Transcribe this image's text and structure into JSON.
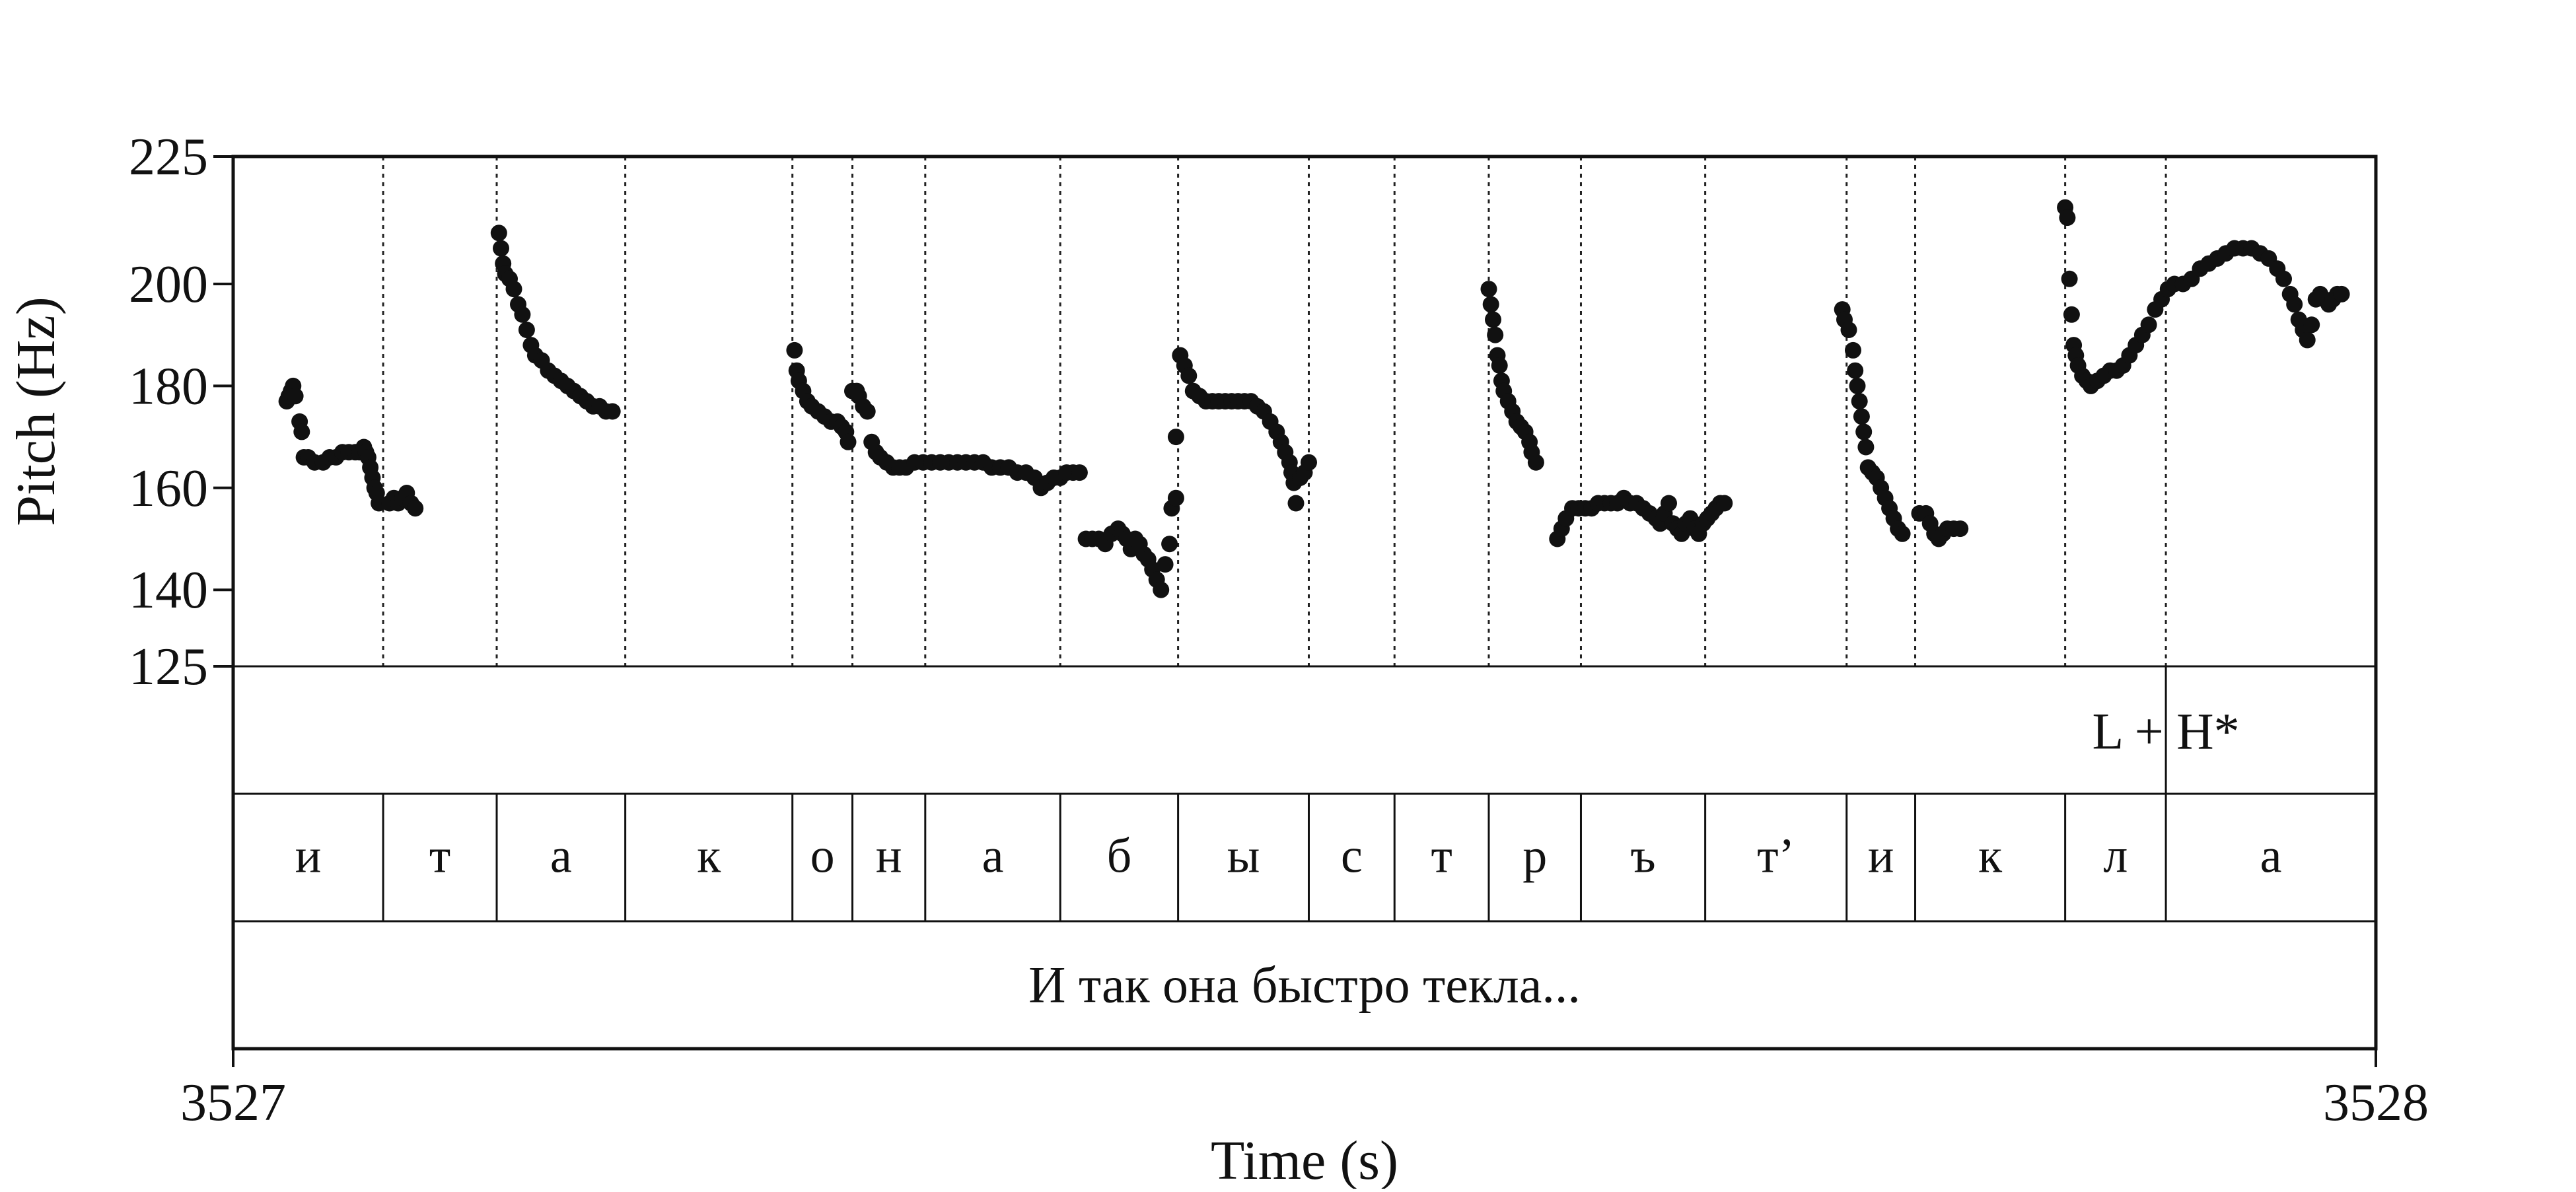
{
  "chart_data": {
    "type": "scatter",
    "ylabel": "Pitch (Hz)",
    "xlabel": "Time (s)",
    "xlim": [
      3527,
      3528
    ],
    "ylim": [
      125,
      225
    ],
    "yticks": [
      225,
      200,
      180,
      160,
      140,
      125
    ],
    "xticks": [
      3527,
      3528
    ],
    "grid": false,
    "marker_color": "#111111",
    "tiers": {
      "tone": {
        "boundaries": [
          3527.902
        ],
        "label": "L + H*",
        "label_at": 3527.902
      },
      "segments": [
        {
          "label": "и",
          "start": 3527.0,
          "end": 3527.07
        },
        {
          "label": "т",
          "start": 3527.07,
          "end": 3527.123
        },
        {
          "label": "а",
          "start": 3527.123,
          "end": 3527.183
        },
        {
          "label": "к",
          "start": 3527.183,
          "end": 3527.261
        },
        {
          "label": "о",
          "start": 3527.261,
          "end": 3527.289
        },
        {
          "label": "н",
          "start": 3527.289,
          "end": 3527.323
        },
        {
          "label": "а",
          "start": 3527.323,
          "end": 3527.386
        },
        {
          "label": "б",
          "start": 3527.386,
          "end": 3527.441
        },
        {
          "label": "ы",
          "start": 3527.441,
          "end": 3527.502
        },
        {
          "label": "с",
          "start": 3527.502,
          "end": 3527.542
        },
        {
          "label": "т",
          "start": 3527.542,
          "end": 3527.586
        },
        {
          "label": "р",
          "start": 3527.586,
          "end": 3527.629
        },
        {
          "label": "ъ",
          "start": 3527.629,
          "end": 3527.687
        },
        {
          "label": "т’",
          "start": 3527.687,
          "end": 3527.753
        },
        {
          "label": "и",
          "start": 3527.753,
          "end": 3527.785
        },
        {
          "label": "к",
          "start": 3527.785,
          "end": 3527.855
        },
        {
          "label": "л",
          "start": 3527.855,
          "end": 3527.902
        },
        {
          "label": "а",
          "start": 3527.902,
          "end": 3528.0
        }
      ],
      "sentence": "И так она быстро текла..."
    },
    "pitch_contours": [
      [
        [
          3527.025,
          177
        ],
        [
          3527.026,
          178
        ],
        [
          3527.027,
          179
        ],
        [
          3527.028,
          180
        ],
        [
          3527.029,
          178
        ],
        [
          3527.031,
          173
        ],
        [
          3527.032,
          171
        ],
        [
          3527.033,
          166
        ],
        [
          3527.035,
          166
        ],
        [
          3527.038,
          165
        ],
        [
          3527.042,
          165
        ],
        [
          3527.045,
          166
        ],
        [
          3527.048,
          166
        ],
        [
          3527.051,
          167
        ],
        [
          3527.054,
          167
        ],
        [
          3527.057,
          167
        ],
        [
          3527.059,
          167
        ],
        [
          3527.061,
          168
        ],
        [
          3527.062,
          167
        ],
        [
          3527.063,
          166
        ],
        [
          3527.064,
          164
        ],
        [
          3527.065,
          162
        ],
        [
          3527.066,
          160
        ],
        [
          3527.067,
          159
        ],
        [
          3527.068,
          157
        ]
      ],
      [
        [
          3527.073,
          157
        ],
        [
          3527.075,
          158
        ],
        [
          3527.077,
          157
        ],
        [
          3527.079,
          158
        ],
        [
          3527.081,
          159
        ],
        [
          3527.083,
          157
        ],
        [
          3527.085,
          156
        ]
      ],
      [
        [
          3527.124,
          210
        ],
        [
          3527.125,
          207
        ],
        [
          3527.126,
          204
        ],
        [
          3527.127,
          202
        ],
        [
          3527.129,
          201
        ],
        [
          3527.131,
          199
        ],
        [
          3527.133,
          196
        ],
        [
          3527.135,
          194
        ],
        [
          3527.137,
          191
        ],
        [
          3527.139,
          188
        ],
        [
          3527.141,
          186
        ],
        [
          3527.144,
          185
        ],
        [
          3527.147,
          183
        ],
        [
          3527.15,
          182
        ],
        [
          3527.153,
          181
        ],
        [
          3527.156,
          180
        ],
        [
          3527.159,
          179
        ],
        [
          3527.162,
          178
        ],
        [
          3527.165,
          177
        ],
        [
          3527.168,
          176
        ],
        [
          3527.171,
          176
        ],
        [
          3527.174,
          175
        ],
        [
          3527.177,
          175
        ]
      ],
      [
        [
          3527.262,
          187
        ],
        [
          3527.263,
          183
        ],
        [
          3527.264,
          181
        ],
        [
          3527.266,
          179
        ],
        [
          3527.268,
          177
        ],
        [
          3527.27,
          176
        ],
        [
          3527.273,
          175
        ],
        [
          3527.276,
          174
        ],
        [
          3527.279,
          173
        ],
        [
          3527.282,
          173
        ],
        [
          3527.284,
          172
        ],
        [
          3527.286,
          171
        ],
        [
          3527.287,
          169
        ]
      ],
      [
        [
          3527.289,
          179
        ],
        [
          3527.291,
          179
        ],
        [
          3527.292,
          178
        ],
        [
          3527.294,
          176
        ],
        [
          3527.296,
          175
        ],
        [
          3527.298,
          169
        ],
        [
          3527.3,
          167
        ],
        [
          3527.302,
          166
        ],
        [
          3527.305,
          165
        ],
        [
          3527.308,
          164
        ],
        [
          3527.311,
          164
        ],
        [
          3527.314,
          164
        ],
        [
          3527.318,
          165
        ],
        [
          3527.322,
          165
        ],
        [
          3527.326,
          165
        ],
        [
          3527.33,
          165
        ],
        [
          3527.334,
          165
        ],
        [
          3527.338,
          165
        ],
        [
          3527.342,
          165
        ],
        [
          3527.346,
          165
        ],
        [
          3527.35,
          165
        ],
        [
          3527.354,
          164
        ],
        [
          3527.358,
          164
        ],
        [
          3527.362,
          164
        ],
        [
          3527.366,
          163
        ],
        [
          3527.37,
          163
        ],
        [
          3527.374,
          162
        ],
        [
          3527.377,
          160
        ],
        [
          3527.38,
          161
        ],
        [
          3527.383,
          162
        ],
        [
          3527.386,
          162
        ],
        [
          3527.389,
          163
        ],
        [
          3527.392,
          163
        ],
        [
          3527.395,
          163
        ]
      ],
      [
        [
          3527.398,
          150
        ],
        [
          3527.401,
          150
        ],
        [
          3527.404,
          150
        ],
        [
          3527.407,
          149
        ],
        [
          3527.41,
          151
        ],
        [
          3527.413,
          152
        ],
        [
          3527.415,
          151
        ],
        [
          3527.417,
          150
        ],
        [
          3527.419,
          148
        ],
        [
          3527.421,
          150
        ],
        [
          3527.423,
          149
        ],
        [
          3527.425,
          147
        ],
        [
          3527.427,
          146
        ],
        [
          3527.429,
          144
        ],
        [
          3527.431,
          142
        ],
        [
          3527.433,
          140
        ],
        [
          3527.435,
          145
        ],
        [
          3527.437,
          149
        ],
        [
          3527.438,
          156
        ],
        [
          3527.44,
          158
        ]
      ],
      [
        [
          3527.44,
          170
        ],
        [
          3527.442,
          186
        ],
        [
          3527.444,
          184
        ],
        [
          3527.446,
          182
        ],
        [
          3527.448,
          179
        ],
        [
          3527.451,
          178
        ],
        [
          3527.454,
          177
        ],
        [
          3527.457,
          177
        ],
        [
          3527.46,
          177
        ],
        [
          3527.463,
          177
        ],
        [
          3527.466,
          177
        ],
        [
          3527.469,
          177
        ],
        [
          3527.472,
          177
        ],
        [
          3527.475,
          177
        ],
        [
          3527.478,
          176
        ],
        [
          3527.481,
          175
        ],
        [
          3527.484,
          173
        ],
        [
          3527.487,
          171
        ],
        [
          3527.489,
          169
        ],
        [
          3527.491,
          167
        ],
        [
          3527.493,
          165
        ],
        [
          3527.494,
          163
        ],
        [
          3527.495,
          161
        ],
        [
          3527.496,
          157
        ],
        [
          3527.498,
          162
        ],
        [
          3527.5,
          163
        ],
        [
          3527.502,
          165
        ]
      ],
      [
        [
          3527.586,
          199
        ],
        [
          3527.587,
          196
        ],
        [
          3527.588,
          193
        ],
        [
          3527.589,
          190
        ],
        [
          3527.59,
          186
        ],
        [
          3527.591,
          184
        ],
        [
          3527.592,
          181
        ],
        [
          3527.593,
          179
        ],
        [
          3527.595,
          177
        ],
        [
          3527.597,
          175
        ],
        [
          3527.599,
          173
        ],
        [
          3527.601,
          172
        ],
        [
          3527.603,
          171
        ],
        [
          3527.605,
          169
        ],
        [
          3527.606,
          167
        ],
        [
          3527.608,
          165
        ]
      ],
      [
        [
          3527.618,
          150
        ],
        [
          3527.62,
          152
        ],
        [
          3527.622,
          154
        ],
        [
          3527.625,
          156
        ],
        [
          3527.628,
          156
        ],
        [
          3527.631,
          156
        ],
        [
          3527.634,
          156
        ],
        [
          3527.637,
          157
        ],
        [
          3527.64,
          157
        ],
        [
          3527.643,
          157
        ],
        [
          3527.646,
          157
        ],
        [
          3527.649,
          158
        ],
        [
          3527.652,
          157
        ],
        [
          3527.655,
          157
        ],
        [
          3527.658,
          156
        ],
        [
          3527.661,
          155
        ],
        [
          3527.664,
          154
        ],
        [
          3527.666,
          153
        ],
        [
          3527.668,
          155
        ],
        [
          3527.67,
          157
        ],
        [
          3527.672,
          153
        ],
        [
          3527.674,
          152
        ],
        [
          3527.676,
          151
        ],
        [
          3527.678,
          153
        ],
        [
          3527.68,
          154
        ],
        [
          3527.682,
          152
        ],
        [
          3527.684,
          151
        ],
        [
          3527.686,
          153
        ],
        [
          3527.688,
          154
        ],
        [
          3527.69,
          155
        ],
        [
          3527.692,
          156
        ],
        [
          3527.694,
          157
        ],
        [
          3527.696,
          157
        ]
      ],
      [
        [
          3527.751,
          195
        ],
        [
          3527.752,
          193
        ],
        [
          3527.754,
          191
        ],
        [
          3527.756,
          187
        ],
        [
          3527.757,
          183
        ],
        [
          3527.758,
          180
        ],
        [
          3527.759,
          177
        ],
        [
          3527.76,
          174
        ],
        [
          3527.761,
          171
        ],
        [
          3527.762,
          168
        ],
        [
          3527.763,
          164
        ],
        [
          3527.765,
          163
        ],
        [
          3527.767,
          162
        ],
        [
          3527.769,
          160
        ],
        [
          3527.771,
          158
        ],
        [
          3527.773,
          156
        ],
        [
          3527.775,
          154
        ],
        [
          3527.777,
          152
        ],
        [
          3527.779,
          151
        ]
      ],
      [
        [
          3527.787,
          155
        ],
        [
          3527.79,
          155
        ],
        [
          3527.792,
          153
        ],
        [
          3527.794,
          151
        ],
        [
          3527.796,
          150
        ],
        [
          3527.798,
          151
        ],
        [
          3527.8,
          152
        ],
        [
          3527.803,
          152
        ],
        [
          3527.806,
          152
        ]
      ],
      [
        [
          3527.855,
          215
        ],
        [
          3527.856,
          213
        ],
        [
          3527.857,
          201
        ],
        [
          3527.858,
          194
        ],
        [
          3527.859,
          188
        ],
        [
          3527.86,
          186
        ],
        [
          3527.861,
          184
        ],
        [
          3527.863,
          182
        ],
        [
          3527.865,
          181
        ],
        [
          3527.867,
          180
        ],
        [
          3527.87,
          181
        ],
        [
          3527.873,
          182
        ],
        [
          3527.876,
          183
        ],
        [
          3527.879,
          183
        ],
        [
          3527.882,
          184
        ],
        [
          3527.885,
          186
        ],
        [
          3527.888,
          188
        ],
        [
          3527.891,
          190
        ],
        [
          3527.894,
          192
        ],
        [
          3527.897,
          195
        ],
        [
          3527.9,
          197
        ],
        [
          3527.903,
          199
        ],
        [
          3527.906,
          200
        ],
        [
          3527.91,
          200
        ],
        [
          3527.914,
          201
        ],
        [
          3527.918,
          203
        ],
        [
          3527.922,
          204
        ],
        [
          3527.926,
          205
        ],
        [
          3527.93,
          206
        ],
        [
          3527.934,
          207
        ],
        [
          3527.938,
          207
        ],
        [
          3527.942,
          207
        ],
        [
          3527.946,
          206
        ],
        [
          3527.95,
          205
        ],
        [
          3527.954,
          203
        ],
        [
          3527.957,
          201
        ],
        [
          3527.96,
          198
        ],
        [
          3527.962,
          196
        ],
        [
          3527.964,
          193
        ],
        [
          3527.966,
          191
        ],
        [
          3527.968,
          189
        ],
        [
          3527.97,
          192
        ],
        [
          3527.972,
          197
        ],
        [
          3527.974,
          198
        ],
        [
          3527.976,
          197
        ],
        [
          3527.978,
          196
        ],
        [
          3527.98,
          197
        ],
        [
          3527.982,
          198
        ],
        [
          3527.984,
          198
        ]
      ]
    ]
  }
}
